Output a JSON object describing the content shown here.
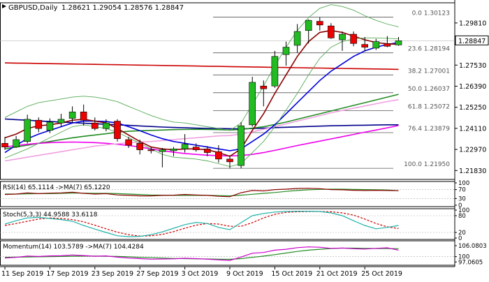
{
  "chart_data": {
    "type": "candlestick",
    "header": {
      "symbol": "GBPUSD,Daily",
      "ohlc": "1.28621 1.29054 1.28576 1.28847",
      "symbol_color": "#000000"
    },
    "price_axis": {
      "ylim": [
        1.2135,
        1.309
      ],
      "ticks": [
        "1.29810",
        "1.27530",
        "1.26390",
        "1.25250",
        "1.24110",
        "1.22970",
        "1.21830"
      ],
      "tick_values": [
        1.2981,
        1.2753,
        1.2639,
        1.2525,
        1.2411,
        1.2297,
        1.2183
      ],
      "current_price": "1.28847",
      "current_price_value": 1.28847
    },
    "x_axis": {
      "labels": [
        "11 Sep 2019",
        "17 Sep 2019",
        "23 Sep 2019",
        "27 Sep 2019",
        "3 Oct 2019",
        "9 Oct 2019",
        "15 Oct 2019",
        "21 Oct 2019",
        "25 Oct 2019"
      ],
      "label_bar_index": [
        0,
        4,
        8,
        12,
        16,
        20,
        24,
        28,
        32
      ]
    },
    "candles": [
      {
        "o": 1.233,
        "h": 1.2365,
        "l": 1.2295,
        "c": 1.231
      },
      {
        "o": 1.231,
        "h": 1.237,
        "l": 1.2305,
        "c": 1.235
      },
      {
        "o": 1.234,
        "h": 1.2485,
        "l": 1.233,
        "c": 1.246
      },
      {
        "o": 1.2455,
        "h": 1.247,
        "l": 1.239,
        "c": 1.241
      },
      {
        "o": 1.24,
        "h": 1.2465,
        "l": 1.2385,
        "c": 1.2445
      },
      {
        "o": 1.244,
        "h": 1.249,
        "l": 1.242,
        "c": 1.246
      },
      {
        "o": 1.2465,
        "h": 1.253,
        "l": 1.244,
        "c": 1.25
      },
      {
        "o": 1.25,
        "h": 1.254,
        "l": 1.2425,
        "c": 1.2455
      },
      {
        "o": 1.244,
        "h": 1.247,
        "l": 1.24,
        "c": 1.241
      },
      {
        "o": 1.241,
        "h": 1.246,
        "l": 1.2395,
        "c": 1.244
      },
      {
        "o": 1.245,
        "h": 1.246,
        "l": 1.234,
        "c": 1.2355
      },
      {
        "o": 1.235,
        "h": 1.2365,
        "l": 1.2305,
        "c": 1.232
      },
      {
        "o": 1.233,
        "h": 1.235,
        "l": 1.227,
        "c": 1.2295
      },
      {
        "o": 1.2295,
        "h": 1.231,
        "l": 1.2275,
        "c": 1.229
      },
      {
        "o": 1.2285,
        "h": 1.2305,
        "l": 1.22,
        "c": 1.2295
      },
      {
        "o": 1.229,
        "h": 1.231,
        "l": 1.226,
        "c": 1.23
      },
      {
        "o": 1.23,
        "h": 1.238,
        "l": 1.228,
        "c": 1.2325
      },
      {
        "o": 1.231,
        "h": 1.233,
        "l": 1.2285,
        "c": 1.2295
      },
      {
        "o": 1.23,
        "h": 1.2315,
        "l": 1.226,
        "c": 1.228
      },
      {
        "o": 1.2285,
        "h": 1.232,
        "l": 1.2225,
        "c": 1.2245
      },
      {
        "o": 1.2245,
        "h": 1.2265,
        "l": 1.2195,
        "c": 1.223
      },
      {
        "o": 1.221,
        "h": 1.2445,
        "l": 1.2195,
        "c": 1.2425
      },
      {
        "o": 1.243,
        "h": 1.269,
        "l": 1.242,
        "c": 1.266
      },
      {
        "o": 1.264,
        "h": 1.267,
        "l": 1.253,
        "c": 1.2625
      },
      {
        "o": 1.264,
        "h": 1.283,
        "l": 1.263,
        "c": 1.28
      },
      {
        "o": 1.281,
        "h": 1.288,
        "l": 1.275,
        "c": 1.285
      },
      {
        "o": 1.286,
        "h": 1.2975,
        "l": 1.282,
        "c": 1.2935
      },
      {
        "o": 1.294,
        "h": 1.3,
        "l": 1.287,
        "c": 1.2995
      },
      {
        "o": 1.299,
        "h": 1.3012,
        "l": 1.294,
        "c": 1.297
      },
      {
        "o": 1.2965,
        "h": 1.298,
        "l": 1.2895,
        "c": 1.29
      },
      {
        "o": 1.289,
        "h": 1.2935,
        "l": 1.283,
        "c": 1.292
      },
      {
        "o": 1.292,
        "h": 1.2935,
        "l": 1.2855,
        "c": 1.287
      },
      {
        "o": 1.2865,
        "h": 1.2905,
        "l": 1.283,
        "c": 1.285
      },
      {
        "o": 1.2845,
        "h": 1.2895,
        "l": 1.2835,
        "c": 1.288
      },
      {
        "o": 1.287,
        "h": 1.291,
        "l": 1.285,
        "c": 1.2855
      },
      {
        "o": 1.2862,
        "h": 1.2905,
        "l": 1.2858,
        "c": 1.2885
      }
    ],
    "candle_colors": {
      "bull_body": "#22bb22",
      "bear_body": "#ee0000",
      "wick": "#000000"
    },
    "moving_averages": [
      {
        "color": "#00008b",
        "values": [
          1.2462,
          1.2458,
          1.2455,
          1.2451,
          1.2448,
          1.2445,
          1.2442,
          1.2439,
          1.2436,
          1.2433,
          1.243,
          1.2427,
          1.2424,
          1.2421,
          1.2418,
          1.2416,
          1.2414,
          1.2412,
          1.2411,
          1.241,
          1.2409,
          1.2408,
          1.241,
          1.2412,
          1.2415,
          1.2417,
          1.2419,
          1.2421,
          1.2423,
          1.2425,
          1.2426,
          1.2427,
          1.2428,
          1.2429,
          1.243,
          1.243
        ]
      },
      {
        "color": "#cc0000",
        "values": [
          1.2765,
          1.2764,
          1.2763,
          1.2762,
          1.2761,
          1.276,
          1.2759,
          1.2758,
          1.2757,
          1.2756,
          1.2755,
          1.2754,
          1.2753,
          1.2752,
          1.2751,
          1.275,
          1.2749,
          1.2748,
          1.2747,
          1.2746,
          1.2745,
          1.2744,
          1.2743,
          1.2742,
          1.2741,
          1.274,
          1.2739,
          1.2738,
          1.2737,
          1.2736,
          1.2735,
          1.2734,
          1.2733,
          1.2732,
          1.2731,
          1.273
        ]
      },
      {
        "color": "#228b22",
        "values": [
          1.23,
          1.231,
          1.232,
          1.233,
          1.234,
          1.235,
          1.236,
          1.2368,
          1.2375,
          1.2382,
          1.239,
          1.2395,
          1.2398,
          1.24,
          1.2402,
          1.2404,
          1.2405,
          1.2406,
          1.2405,
          1.2404,
          1.2402,
          1.2405,
          1.2412,
          1.242,
          1.2432,
          1.2445,
          1.246,
          1.2475,
          1.249,
          1.2505,
          1.252,
          1.2535,
          1.255,
          1.2565,
          1.258,
          1.2595
        ]
      },
      {
        "color": "#ee00ee",
        "values": [
          1.231,
          1.2318,
          1.2325,
          1.233,
          1.2334,
          1.2336,
          1.2337,
          1.2336,
          1.2334,
          1.233,
          1.2325,
          1.2318,
          1.231,
          1.23,
          1.229,
          1.2282,
          1.2275,
          1.227,
          1.2266,
          1.2263,
          1.2262,
          1.2264,
          1.227,
          1.228,
          1.2292,
          1.2305,
          1.2318,
          1.233,
          1.2342,
          1.2354,
          1.2366,
          1.2378,
          1.239,
          1.2402,
          1.2414,
          1.2426
        ]
      },
      {
        "color": "#f0a0e0",
        "values": [
          1.2235,
          1.2245,
          1.2255,
          1.2265,
          1.2275,
          1.2285,
          1.2295,
          1.2305,
          1.2315,
          1.2322,
          1.2328,
          1.2333,
          1.2337,
          1.234,
          1.2345,
          1.235,
          1.2355,
          1.236,
          1.2365,
          1.237,
          1.2372,
          1.238,
          1.2392,
          1.2406,
          1.242,
          1.2435,
          1.245,
          1.2465,
          1.248,
          1.2495,
          1.2508,
          1.252,
          1.2532,
          1.2544,
          1.2556,
          1.2566
        ]
      },
      {
        "color": "#0000dd",
        "values": [
          1.228,
          1.232,
          1.2355,
          1.238,
          1.24,
          1.242,
          1.244,
          1.245,
          1.245,
          1.2448,
          1.244,
          1.242,
          1.2398,
          1.2375,
          1.2355,
          1.234,
          1.233,
          1.232,
          1.231,
          1.23,
          1.229,
          1.23,
          1.234,
          1.238,
          1.243,
          1.249,
          1.255,
          1.261,
          1.267,
          1.272,
          1.276,
          1.28,
          1.283,
          1.285,
          1.2865,
          1.2875
        ]
      },
      {
        "color": "#8b0000",
        "values": [
          1.236,
          1.238,
          1.241,
          1.2425,
          1.243,
          1.244,
          1.2455,
          1.246,
          1.245,
          1.244,
          1.241,
          1.2375,
          1.234,
          1.231,
          1.23,
          1.2295,
          1.23,
          1.23,
          1.2295,
          1.228,
          1.226,
          1.23,
          1.24,
          1.249,
          1.26,
          1.27,
          1.28,
          1.288,
          1.293,
          1.294,
          1.293,
          1.291,
          1.289,
          1.2875,
          1.2868,
          1.2865
        ]
      },
      {
        "color": "#55aa55",
        "values": [
          1.225,
          1.2275,
          1.23,
          1.233,
          1.236,
          1.239,
          1.242,
          1.243,
          1.242,
          1.241,
          1.239,
          1.236,
          1.233,
          1.23,
          1.227,
          1.2255,
          1.225,
          1.2245,
          1.2235,
          1.222,
          1.2205,
          1.222,
          1.228,
          1.234,
          1.242,
          1.251,
          1.26,
          1.27,
          1.279,
          1.285,
          1.288,
          1.2895,
          1.29,
          1.29,
          1.2898,
          1.2895
        ]
      },
      {
        "color": "#55aa55",
        "values": [
          1.247,
          1.25,
          1.253,
          1.255,
          1.256,
          1.257,
          1.258,
          1.2585,
          1.258,
          1.257,
          1.2555,
          1.253,
          1.2505,
          1.248,
          1.246,
          1.2445,
          1.244,
          1.243,
          1.242,
          1.241,
          1.24,
          1.244,
          1.254,
          1.264,
          1.275,
          1.285,
          1.294,
          1.301,
          1.306,
          1.308,
          1.307,
          1.305,
          1.302,
          1.2995,
          1.2975,
          1.296
        ]
      }
    ],
    "fibonacci": {
      "color": "#555555",
      "levels": [
        {
          "label": "0.0 1.30123",
          "value": 1.30123
        },
        {
          "label": "23.6 1.28194",
          "value": 1.28194
        },
        {
          "label": "38.2 1.27001",
          "value": 1.27001
        },
        {
          "label": "50.0 1.26037",
          "value": 1.26037
        },
        {
          "label": "61.8 1.25072",
          "value": 1.25072
        },
        {
          "label": "76.4 1.23879",
          "value": 1.23879
        },
        {
          "label": "100.0 1.21950",
          "value": 1.2195
        }
      ]
    },
    "rsi": {
      "label": "RSI(14) 65.1114 ->MA(7) 65.1220",
      "ylim": [
        0,
        100
      ],
      "ticks": [
        "100",
        "70",
        "30",
        "0"
      ],
      "tick_values": [
        100,
        70,
        30,
        0
      ],
      "rsi_color": "#8b0000",
      "ma_color": "#228b22",
      "rsi_values": [
        48,
        50,
        55,
        52,
        54,
        55,
        58,
        53,
        50,
        52,
        46,
        44,
        42,
        42,
        44,
        45,
        48,
        46,
        44,
        40,
        38,
        56,
        66,
        64,
        70,
        72,
        75,
        76,
        74,
        70,
        69,
        67,
        66,
        67,
        66,
        65
      ],
      "ma_values": [
        50,
        50,
        51,
        52,
        52,
        53,
        54,
        54,
        53,
        53,
        52,
        50,
        48,
        46,
        45,
        44,
        44,
        44,
        44,
        43,
        42,
        45,
        49,
        53,
        57,
        62,
        66,
        69,
        71,
        72,
        72,
        71,
        70,
        69,
        68,
        65
      ]
    },
    "stochastic": {
      "label": "Stoch(5,3,3) 44.9588 33.6118",
      "ylim": [
        0,
        100
      ],
      "ticks": [
        "100",
        "80",
        "20",
        "0"
      ],
      "tick_values": [
        100,
        80,
        20,
        0
      ],
      "main_color": "#20b2aa",
      "signal_color": "#cc0000",
      "main_values": [
        50,
        62,
        72,
        74,
        70,
        66,
        60,
        45,
        32,
        20,
        8,
        5,
        6,
        12,
        22,
        35,
        48,
        56,
        52,
        38,
        30,
        55,
        80,
        88,
        93,
        95,
        96,
        96,
        95,
        90,
        80,
        62,
        45,
        33,
        38,
        45
      ],
      "signal_values": [
        45,
        52,
        60,
        68,
        72,
        70,
        66,
        58,
        46,
        33,
        21,
        12,
        7,
        8,
        13,
        23,
        35,
        46,
        52,
        50,
        42,
        42,
        55,
        72,
        85,
        92,
        94,
        95,
        95,
        94,
        90,
        82,
        68,
        52,
        40,
        34
      ]
    },
    "momentum": {
      "label": "Momentum(14) 103.5789 ->MA(7) 104.4284",
      "ylim": [
        96,
        108
      ],
      "ticks": [
        "106.0803",
        "100",
        "97.0605"
      ],
      "tick_values": [
        106.0803,
        100,
        97.0605
      ],
      "mom_color": "#cc00cc",
      "ma_color": "#228b22",
      "mom_values": [
        99.2,
        99.6,
        100.3,
        100.1,
        100.4,
        100.5,
        100.9,
        100.6,
        100.2,
        100.4,
        99.7,
        99.2,
        98.9,
        98.6,
        98.7,
        98.8,
        99.1,
        98.9,
        98.6,
        98.2,
        97.9,
        99.8,
        101.9,
        102.3,
        103.6,
        104.1,
        105.0,
        105.4,
        105.2,
        104.6,
        104.8,
        104.4,
        104.2,
        104.6,
        104.9,
        103.6
      ],
      "ma_values": [
        99.6,
        99.7,
        99.8,
        99.9,
        100.0,
        100.1,
        100.2,
        100.3,
        100.3,
        100.2,
        100.1,
        99.9,
        99.6,
        99.4,
        99.2,
        99.0,
        98.9,
        98.8,
        98.7,
        98.6,
        98.5,
        98.9,
        99.6,
        100.3,
        101.1,
        102.0,
        102.9,
        103.6,
        104.1,
        104.5,
        104.7,
        104.7,
        104.6,
        104.5,
        104.5,
        104.4
      ]
    }
  }
}
